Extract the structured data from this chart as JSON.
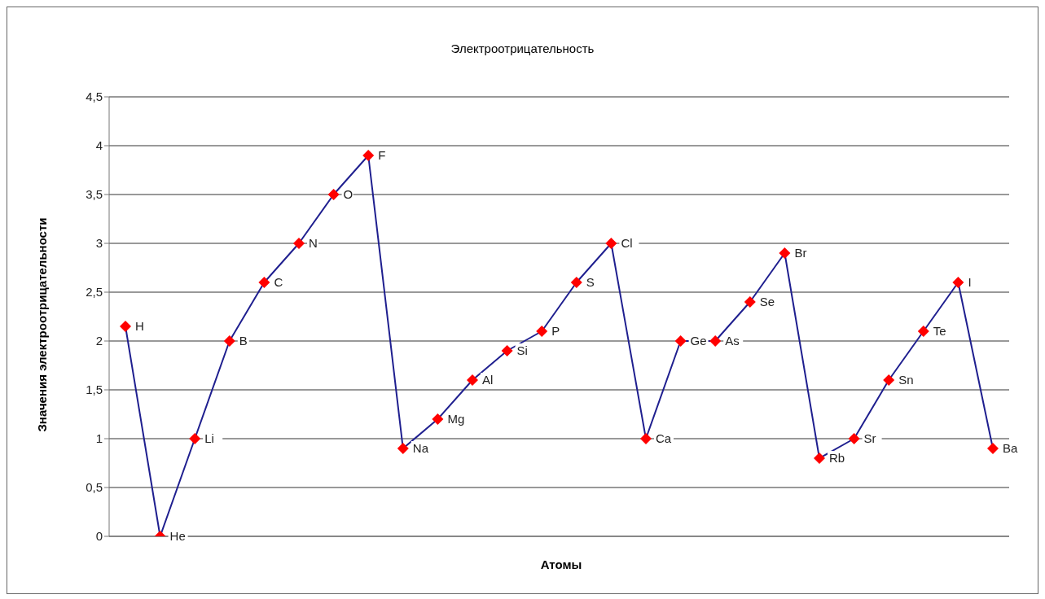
{
  "chart_data": {
    "type": "line",
    "title": "Электроотрицательность",
    "xlabel": "Атомы",
    "ylabel": "Значения электроотрицательности",
    "categories": [
      "H",
      "He",
      "Li",
      "B",
      "C",
      "N",
      "O",
      "F",
      "Na",
      "Mg",
      "Al",
      "Si",
      "P",
      "S",
      "Cl",
      "Ca",
      "Ge",
      "As",
      "Se",
      "Br",
      "Rb",
      "Sr",
      "Sn",
      "Te",
      "I",
      "Ba"
    ],
    "series": [
      {
        "color": "#1f1f8f",
        "colors": [
          "#ff0000",
          "#ff0000",
          "#ff0000",
          "#ff0000",
          "#ff0000",
          "#ff0000",
          "#ff0000",
          "#ff0000",
          "#ff0000",
          "#ff0000",
          "#ff0000",
          "#ff0000",
          "#ff0000",
          "#ff0000",
          "#ff0000",
          "#ff0000",
          "#ff0000",
          "#ff0000",
          "#ff0000",
          "#ff0000",
          "#ff0000",
          "#ff0000",
          "#ff0000",
          "#ff0000",
          "#ff0000",
          "#ff0000"
        ],
        "values": [
          2.15,
          0,
          1,
          2,
          2.6,
          3,
          3.5,
          3.9,
          0.9,
          1.2,
          1.6,
          1.9,
          2.1,
          2.6,
          3,
          1,
          2,
          2,
          2.4,
          2.9,
          0.8,
          1,
          1.6,
          2.1,
          2.6,
          0.9
        ]
      }
    ],
    "ylim": [
      0,
      4.5
    ],
    "yticks": [
      0,
      {
        "value": 0.5,
        "label": "0,5"
      },
      1,
      {
        "value": 1.5,
        "label": "1,5"
      },
      2,
      {
        "value": 2.5,
        "label": "2,5"
      },
      3,
      {
        "value": 3.5,
        "label": "3,5"
      },
      4,
      {
        "value": 4.5,
        "label": "4,5"
      }
    ],
    "grid": "y",
    "tick_labels": "y",
    "marker": "diamond",
    "line_style": "solid",
    "legend": false
  }
}
